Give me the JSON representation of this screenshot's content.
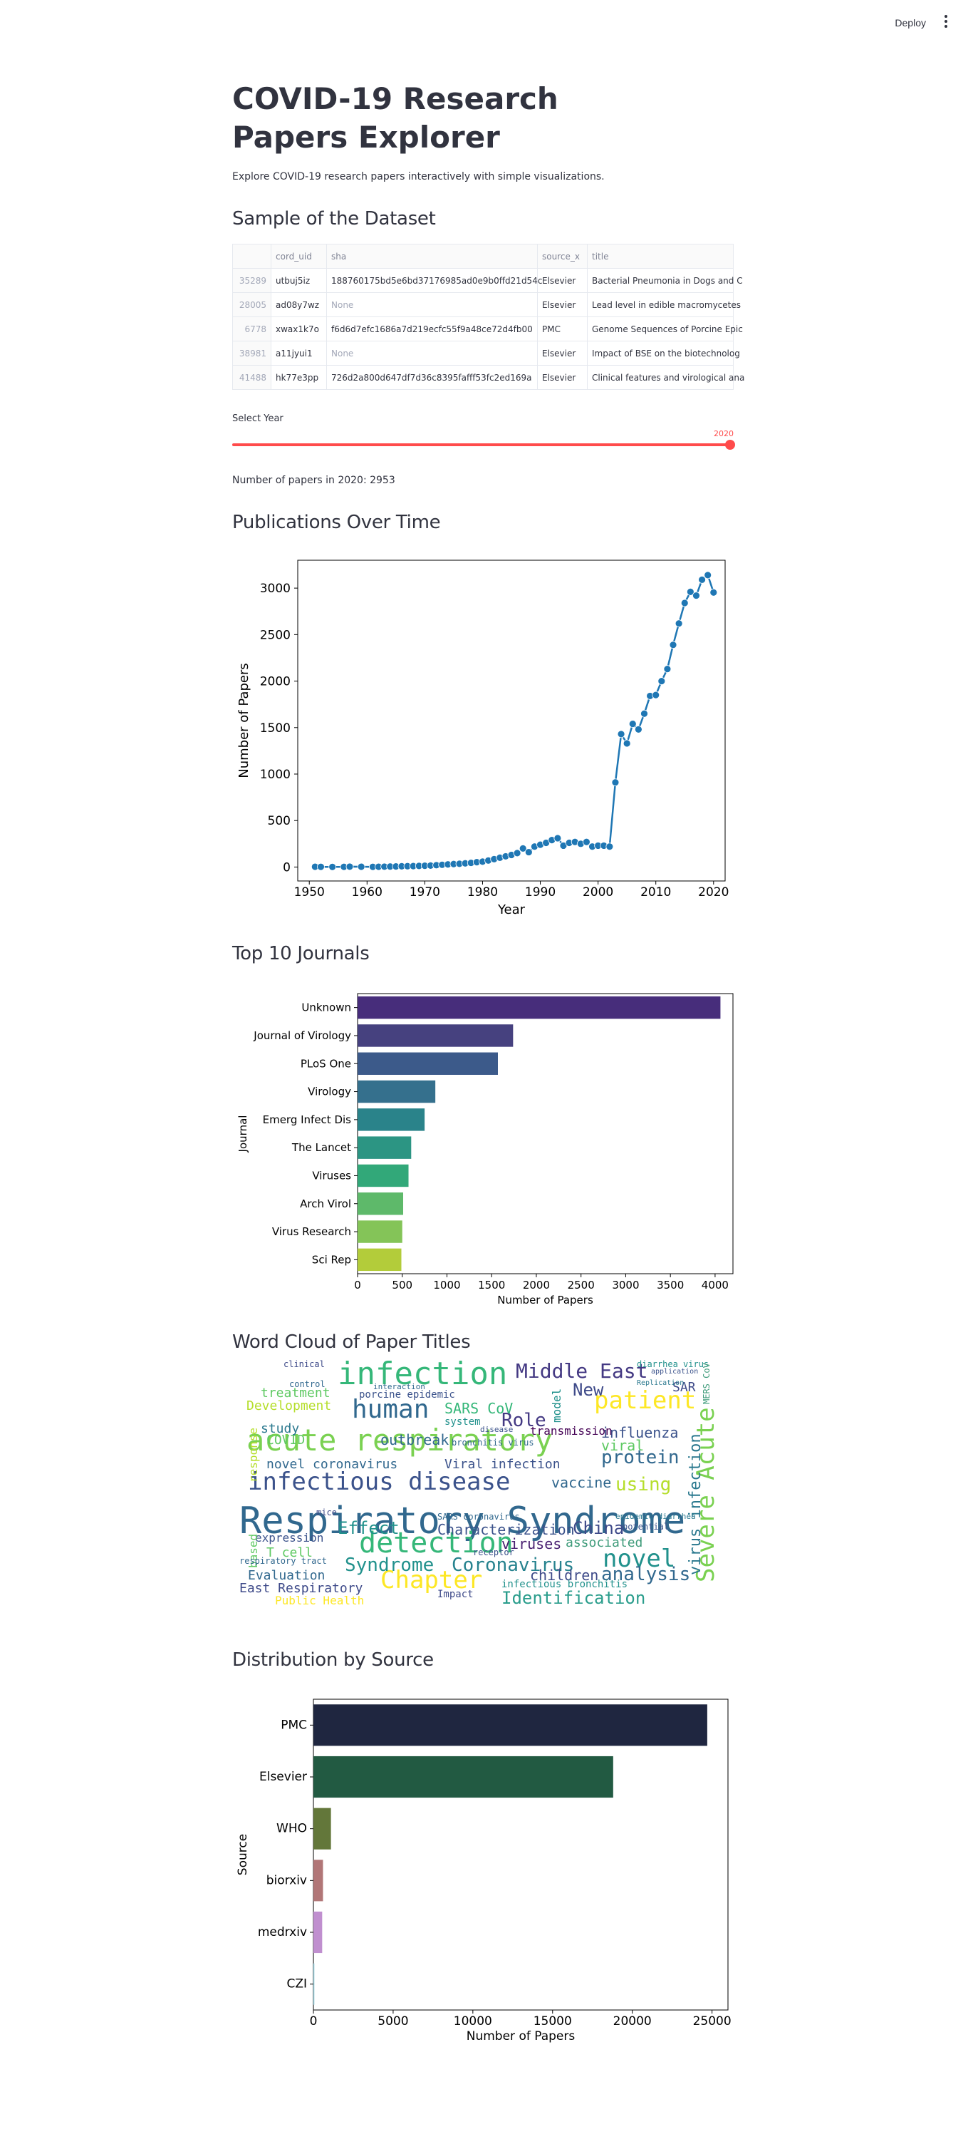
{
  "header": {
    "deploy_label": "Deploy",
    "menu_icon": "more-vertical-icon"
  },
  "page": {
    "title": "COVID-19 Research Papers Explorer",
    "description": "Explore COVID-19 research papers interactively with simple visualizations."
  },
  "sections": {
    "sample": "Sample of the Dataset",
    "publications": "Publications Over Time",
    "journals": "Top 10 Journals",
    "wordcloud": "Word Cloud of Paper Titles",
    "source": "Distribution by Source"
  },
  "table": {
    "columns": [
      "",
      "cord_uid",
      "sha",
      "source_x",
      "title"
    ],
    "rows": [
      [
        "35289",
        "utbuj5iz",
        "188760175bd5e6bd37176985ad0e9b0ffd21d54c",
        "Elsevier",
        "Bacterial Pneumonia in Dogs and C"
      ],
      [
        "28005",
        "ad08y7wz",
        "None",
        "Elsevier",
        "Lead level in edible macromycetes"
      ],
      [
        "6778",
        "xwax1k7o",
        "f6d6d7efc1686a7d219ecfc55f9a48ce72d4fb00",
        "PMC",
        "Genome Sequences of Porcine Epic"
      ],
      [
        "38981",
        "a11jyui1",
        "None",
        "Elsevier",
        "Impact of BSE on the biotechnolog"
      ],
      [
        "41488",
        "hk77e3pp",
        "726d2a800d647df7d36c8395fafff53fc2ed169a",
        "Elsevier",
        "Clinical features and virological ana"
      ]
    ]
  },
  "slider": {
    "label": "Select Year",
    "value": "2020",
    "fraction": 1.0
  },
  "count_text": "Number of papers in 2020: 2953",
  "charts": {
    "publications": {
      "type": "line",
      "xlabel": "Year",
      "ylabel": "Number of Papers",
      "xlim": [
        1948,
        2022
      ],
      "ylim": [
        -150,
        3300
      ],
      "xticks": [
        1950,
        1960,
        1970,
        1980,
        1990,
        2000,
        2010,
        2020
      ],
      "yticks": [
        0,
        500,
        1000,
        1500,
        2000,
        2500,
        3000
      ],
      "color": "#1f77b4",
      "x": [
        1951,
        1952,
        1954,
        1956,
        1957,
        1959,
        1961,
        1962,
        1963,
        1964,
        1965,
        1966,
        1967,
        1968,
        1969,
        1970,
        1971,
        1972,
        1973,
        1974,
        1975,
        1976,
        1977,
        1978,
        1979,
        1980,
        1981,
        1982,
        1983,
        1984,
        1985,
        1986,
        1987,
        1988,
        1989,
        1990,
        1991,
        1992,
        1993,
        1994,
        1995,
        1996,
        1997,
        1998,
        1999,
        2000,
        2001,
        2002,
        2003,
        2004,
        2005,
        2006,
        2007,
        2008,
        2009,
        2010,
        2011,
        2012,
        2013,
        2014,
        2015,
        2016,
        2017,
        2018,
        2019,
        2020
      ],
      "y": [
        3,
        2,
        1,
        2,
        4,
        3,
        2,
        3,
        4,
        5,
        6,
        8,
        9,
        10,
        12,
        14,
        16,
        20,
        24,
        28,
        32,
        35,
        40,
        45,
        52,
        58,
        70,
        85,
        100,
        115,
        130,
        150,
        200,
        160,
        220,
        240,
        260,
        290,
        310,
        230,
        260,
        270,
        250,
        270,
        220,
        230,
        230,
        220,
        910,
        1430,
        1330,
        1540,
        1480,
        1650,
        1840,
        1850,
        2000,
        2130,
        2390,
        2620,
        2840,
        2960,
        2920,
        3090,
        3140,
        2953
      ]
    },
    "journals": {
      "type": "bar",
      "orientation": "horizontal",
      "xlabel": "Number of Papers",
      "ylabel": "Journal",
      "xlim": [
        0,
        4200
      ],
      "xticks": [
        0,
        500,
        1000,
        1500,
        2000,
        2500,
        3000,
        3500,
        4000
      ],
      "categories": [
        "Unknown",
        "Journal of Virology",
        "PLoS One",
        "Virology",
        "Emerg Infect Dis",
        "The Lancet",
        "Viruses",
        "Arch Virol",
        "Virus Research",
        "Sci Rep"
      ],
      "values": [
        4060,
        1740,
        1570,
        870,
        750,
        600,
        570,
        510,
        500,
        490
      ],
      "colors": [
        "#472d7b",
        "#46417f",
        "#3c5a8a",
        "#35708d",
        "#2a838a",
        "#2c9583",
        "#32a879",
        "#5eb96a",
        "#84c458",
        "#b3cc3a"
      ]
    },
    "source": {
      "type": "bar",
      "orientation": "horizontal",
      "xlabel": "Number of Papers",
      "ylabel": "Source",
      "xlim": [
        0,
        26000
      ],
      "xticks": [
        0,
        5000,
        10000,
        15000,
        20000,
        25000
      ],
      "categories": [
        "PMC",
        "Elsevier",
        "WHO",
        "biorxiv",
        "medrxiv",
        "CZI"
      ],
      "values": [
        24700,
        18800,
        1100,
        600,
        550,
        60
      ],
      "colors": [
        "#1f2640",
        "#225a42",
        "#63773a",
        "#b17677",
        "#c08fcf",
        "#9cd4e0"
      ]
    }
  },
  "wordcloud": {
    "words": [
      {
        "t": "Respiratory Syndrome",
        "x": 10,
        "y": 208,
        "s": 52,
        "c": "#31688e"
      },
      {
        "t": "acute respiratory",
        "x": 20,
        "y": 100,
        "s": 42,
        "c": "#7ad151"
      },
      {
        "t": "infection",
        "x": 148,
        "y": 6,
        "s": 44,
        "c": "#35b779"
      },
      {
        "t": "infectious disease",
        "x": 22,
        "y": 162,
        "s": 34,
        "c": "#3b528b"
      },
      {
        "t": "detection",
        "x": 178,
        "y": 245,
        "s": 40,
        "c": "#35b779"
      },
      {
        "t": "human",
        "x": 168,
        "y": 60,
        "s": 36,
        "c": "#31688e"
      },
      {
        "t": "Severe Acute",
        "x": 648,
        "y": 320,
        "s": 34,
        "c": "#7ad151",
        "r": -90
      },
      {
        "t": "patient",
        "x": 508,
        "y": 48,
        "s": 34,
        "c": "#fde725"
      },
      {
        "t": "novel",
        "x": 520,
        "y": 270,
        "s": 34,
        "c": "#21918c"
      },
      {
        "t": "Chapter",
        "x": 208,
        "y": 300,
        "s": 34,
        "c": "#fde725"
      },
      {
        "t": "Middle East",
        "x": 398,
        "y": 10,
        "s": 28,
        "c": "#443983"
      },
      {
        "t": "Syndrome",
        "x": 158,
        "y": 283,
        "s": 26,
        "c": "#21918c"
      },
      {
        "t": "Coronavirus",
        "x": 308,
        "y": 283,
        "s": 26,
        "c": "#26828e"
      },
      {
        "t": "Effect",
        "x": 148,
        "y": 232,
        "s": 24,
        "c": "#21918c"
      },
      {
        "t": "Role",
        "x": 378,
        "y": 80,
        "s": 26,
        "c": "#443983"
      },
      {
        "t": "New",
        "x": 478,
        "y": 38,
        "s": 24,
        "c": "#3e4a89"
      },
      {
        "t": "protein",
        "x": 518,
        "y": 132,
        "s": 26,
        "c": "#31688e"
      },
      {
        "t": "analysis",
        "x": 518,
        "y": 296,
        "s": 26,
        "c": "#31688e"
      },
      {
        "t": "China",
        "x": 478,
        "y": 232,
        "s": 24,
        "c": "#3e4a89"
      },
      {
        "t": "Identification",
        "x": 378,
        "y": 330,
        "s": 24,
        "c": "#2a9d8c"
      },
      {
        "t": "using",
        "x": 538,
        "y": 170,
        "s": 26,
        "c": "#b5de2b"
      },
      {
        "t": "vaccine",
        "x": 448,
        "y": 170,
        "s": 20,
        "c": "#31688e"
      },
      {
        "t": "Characterization",
        "x": 288,
        "y": 236,
        "s": 20,
        "c": "#3b528b"
      },
      {
        "t": "viruses",
        "x": 378,
        "y": 256,
        "s": 20,
        "c": "#481f70"
      },
      {
        "t": "children",
        "x": 418,
        "y": 300,
        "s": 20,
        "c": "#3e4a89"
      },
      {
        "t": "associated",
        "x": 468,
        "y": 256,
        "s": 18,
        "c": "#3e9b7a"
      },
      {
        "t": "influenza",
        "x": 518,
        "y": 100,
        "s": 20,
        "c": "#3b528b"
      },
      {
        "t": "viral",
        "x": 518,
        "y": 118,
        "s": 20,
        "c": "#5ec962"
      },
      {
        "t": "SARS CoV",
        "x": 298,
        "y": 66,
        "s": 20,
        "c": "#35b779"
      },
      {
        "t": "outbreak",
        "x": 208,
        "y": 110,
        "s": 20,
        "c": "#31688e"
      },
      {
        "t": "novel coronavirus",
        "x": 48,
        "y": 146,
        "s": 18,
        "c": "#31688e"
      },
      {
        "t": "Viral infection",
        "x": 298,
        "y": 146,
        "s": 18,
        "c": "#3b528b"
      },
      {
        "t": "Development",
        "x": 20,
        "y": 64,
        "s": 18,
        "c": "#b5de2b"
      },
      {
        "t": "treatment",
        "x": 40,
        "y": 46,
        "s": 18,
        "c": "#5ec962"
      },
      {
        "t": "COVID",
        "x": 48,
        "y": 112,
        "s": 18,
        "c": "#5ec962"
      },
      {
        "t": "study",
        "x": 40,
        "y": 96,
        "s": 18,
        "c": "#2a788e"
      },
      {
        "t": "East Respiratory",
        "x": 10,
        "y": 320,
        "s": 18,
        "c": "#3e4a89"
      },
      {
        "t": "Evaluation",
        "x": 22,
        "y": 302,
        "s": 18,
        "c": "#31688e"
      },
      {
        "t": "Public Health",
        "x": 60,
        "y": 338,
        "s": 16,
        "c": "#fde725"
      },
      {
        "t": "expression",
        "x": 32,
        "y": 250,
        "s": 16,
        "c": "#3b528b"
      },
      {
        "t": "T cell",
        "x": 48,
        "y": 270,
        "s": 18,
        "c": "#5ec962"
      },
      {
        "t": "virus infection",
        "x": 640,
        "y": 310,
        "s": 22,
        "c": "#2a788e",
        "r": -90
      },
      {
        "t": "response",
        "x": 22,
        "y": 180,
        "s": 16,
        "c": "#b5de2b",
        "r": -90
      },
      {
        "t": "based",
        "x": 22,
        "y": 300,
        "s": 16,
        "c": "#5ec962",
        "r": -90
      },
      {
        "t": "model",
        "x": 448,
        "y": 96,
        "s": 16,
        "c": "#21918c",
        "r": -90
      },
      {
        "t": "transmission",
        "x": 418,
        "y": 100,
        "s": 16,
        "c": "#440154"
      },
      {
        "t": "system",
        "x": 298,
        "y": 88,
        "s": 14,
        "c": "#21918c"
      },
      {
        "t": "porcine epidemic",
        "x": 178,
        "y": 50,
        "s": 14,
        "c": "#3b528b"
      },
      {
        "t": "bronchitis virus",
        "x": 308,
        "y": 118,
        "s": 12,
        "c": "#31688e"
      },
      {
        "t": "infectious bronchitis",
        "x": 378,
        "y": 316,
        "s": 14,
        "c": "#21918c"
      },
      {
        "t": "SAR",
        "x": 618,
        "y": 38,
        "s": 18,
        "c": "#3e4a89"
      },
      {
        "t": "diarrhea virus",
        "x": 568,
        "y": 8,
        "s": 12,
        "c": "#21918c"
      },
      {
        "t": "receptor",
        "x": 338,
        "y": 272,
        "s": 12,
        "c": "#3b528b"
      },
      {
        "t": "potential",
        "x": 548,
        "y": 236,
        "s": 12,
        "c": "#3b528b"
      },
      {
        "t": "clinical",
        "x": 72,
        "y": 8,
        "s": 12,
        "c": "#3e4a89"
      },
      {
        "t": "Impact",
        "x": 288,
        "y": 330,
        "s": 14,
        "c": "#3e4a89"
      },
      {
        "t": "SARS coronavirus",
        "x": 288,
        "y": 222,
        "s": 12,
        "c": "#31688e"
      },
      {
        "t": "control",
        "x": 80,
        "y": 36,
        "s": 12,
        "c": "#31688e"
      },
      {
        "t": "interaction",
        "x": 198,
        "y": 40,
        "s": 11,
        "c": "#31688e"
      },
      {
        "t": "respiratory tract",
        "x": 10,
        "y": 284,
        "s": 12,
        "c": "#31688e"
      },
      {
        "t": "mice",
        "x": 118,
        "y": 216,
        "s": 12,
        "c": "#3e4a89"
      },
      {
        "t": "disease",
        "x": 348,
        "y": 100,
        "s": 11,
        "c": "#3b528b"
      },
      {
        "t": "epidemic diarrhea",
        "x": 538,
        "y": 222,
        "s": 11,
        "c": "#2a788e"
      },
      {
        "t": "MERS CoV",
        "x": 660,
        "y": 70,
        "s": 12,
        "c": "#3e9b7a",
        "r": -90
      },
      {
        "t": "Replication",
        "x": 568,
        "y": 36,
        "s": 10,
        "c": "#2a788e"
      },
      {
        "t": "application",
        "x": 588,
        "y": 20,
        "s": 10,
        "c": "#3b528b"
      }
    ]
  }
}
